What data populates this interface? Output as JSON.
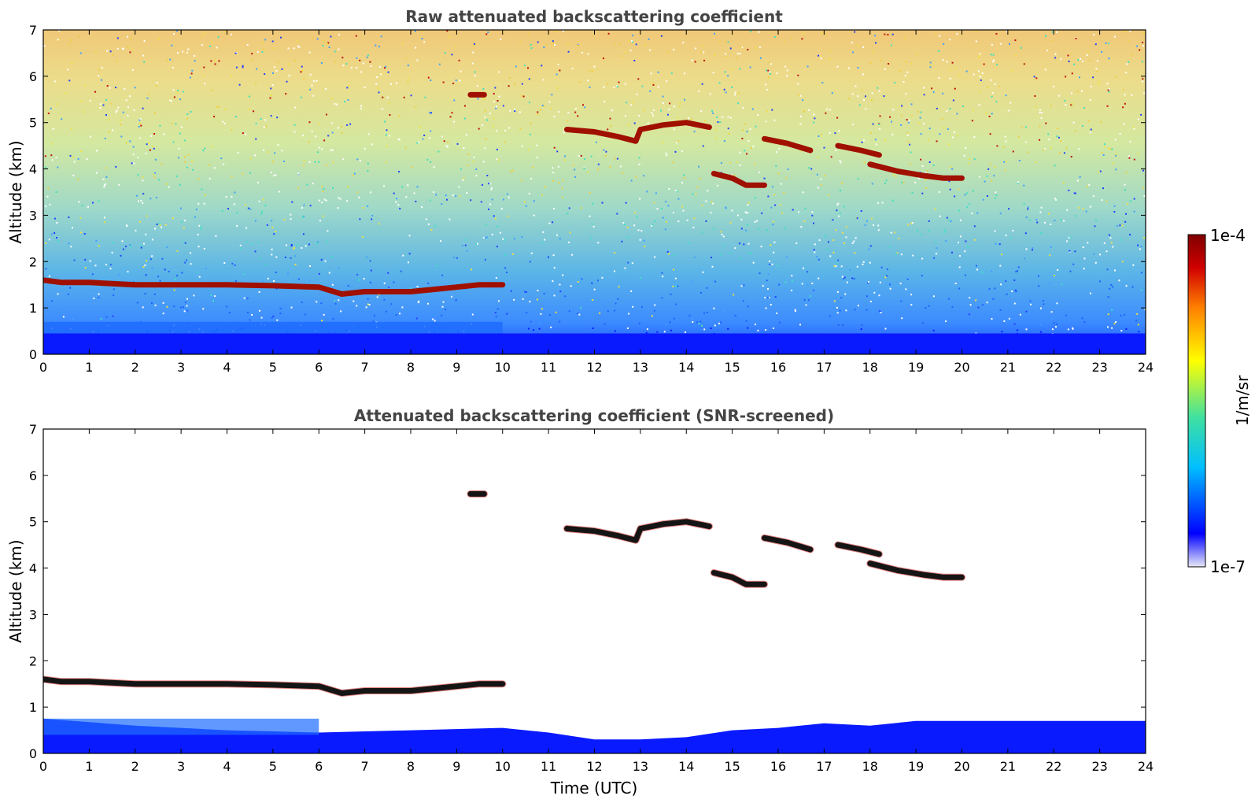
{
  "chart_data": [
    {
      "type": "heatmap",
      "title": "Raw attenuated backscattering coefficient",
      "xlabel": "",
      "ylabel": "Altitude (km)",
      "xlim": [
        0,
        24
      ],
      "ylim": [
        0,
        7
      ],
      "xticks": [
        "0",
        "1",
        "2",
        "3",
        "4",
        "5",
        "6",
        "7",
        "8",
        "9",
        "10",
        "11",
        "12",
        "13",
        "14",
        "15",
        "16",
        "17",
        "18",
        "19",
        "20",
        "21",
        "22",
        "23",
        "24"
      ],
      "yticks": [
        "0",
        "1",
        "2",
        "3",
        "4",
        "5",
        "6",
        "7"
      ],
      "layers": [
        {
          "name": "boundary-layer-top",
          "points": [
            [
              0,
              1.6
            ],
            [
              0.4,
              1.55
            ],
            [
              1,
              1.55
            ],
            [
              2,
              1.5
            ],
            [
              3,
              1.5
            ],
            [
              4,
              1.5
            ],
            [
              5,
              1.48
            ],
            [
              6,
              1.45
            ],
            [
              6.5,
              1.3
            ],
            [
              7,
              1.35
            ],
            [
              8,
              1.35
            ],
            [
              8.5,
              1.4
            ],
            [
              9,
              1.45
            ],
            [
              9.5,
              1.5
            ],
            [
              10,
              1.5
            ]
          ]
        },
        {
          "name": "mid-cloud-a",
          "points": [
            [
              11.4,
              4.85
            ],
            [
              12,
              4.8
            ],
            [
              12.5,
              4.7
            ],
            [
              12.9,
              4.6
            ],
            [
              13,
              4.85
            ],
            [
              13.5,
              4.95
            ],
            [
              14,
              5.0
            ],
            [
              14.5,
              4.9
            ]
          ]
        },
        {
          "name": "mid-cloud-b",
          "points": [
            [
              14.6,
              3.9
            ],
            [
              15,
              3.8
            ],
            [
              15.3,
              3.65
            ],
            [
              15.7,
              3.65
            ]
          ]
        },
        {
          "name": "mid-cloud-c",
          "points": [
            [
              15.7,
              4.65
            ],
            [
              16.2,
              4.55
            ],
            [
              16.7,
              4.4
            ]
          ]
        },
        {
          "name": "mid-cloud-d",
          "points": [
            [
              17.3,
              4.5
            ],
            [
              17.8,
              4.4
            ],
            [
              18.2,
              4.3
            ]
          ]
        },
        {
          "name": "mid-cloud-e",
          "points": [
            [
              18.0,
              4.1
            ],
            [
              18.6,
              3.95
            ],
            [
              19.2,
              3.85
            ],
            [
              19.6,
              3.8
            ],
            [
              20.0,
              3.8
            ]
          ]
        },
        {
          "name": "isolated-echo",
          "points": [
            [
              9.3,
              5.6
            ],
            [
              9.6,
              5.6
            ]
          ]
        }
      ],
      "background": "noisy aerosol/molecular signal, strong near surface"
    },
    {
      "type": "heatmap",
      "title": "Attenuated backscattering coefficient (SNR-screened)",
      "xlabel": "Time (UTC)",
      "ylabel": "Altitude (km)",
      "xlim": [
        0,
        24
      ],
      "ylim": [
        0,
        7
      ],
      "xticks": [
        "0",
        "1",
        "2",
        "3",
        "4",
        "5",
        "6",
        "7",
        "8",
        "9",
        "10",
        "11",
        "12",
        "13",
        "14",
        "15",
        "16",
        "17",
        "18",
        "19",
        "20",
        "21",
        "22",
        "23",
        "24"
      ],
      "yticks": [
        "0",
        "1",
        "2",
        "3",
        "4",
        "5",
        "6",
        "7"
      ],
      "layers": [
        {
          "name": "boundary-layer-top",
          "points": [
            [
              0,
              1.6
            ],
            [
              0.4,
              1.55
            ],
            [
              1,
              1.55
            ],
            [
              2,
              1.5
            ],
            [
              3,
              1.5
            ],
            [
              4,
              1.5
            ],
            [
              5,
              1.48
            ],
            [
              6,
              1.45
            ],
            [
              6.5,
              1.3
            ],
            [
              7,
              1.35
            ],
            [
              8,
              1.35
            ],
            [
              8.5,
              1.4
            ],
            [
              9,
              1.45
            ],
            [
              9.5,
              1.5
            ],
            [
              10,
              1.5
            ]
          ]
        },
        {
          "name": "mid-cloud-a",
          "points": [
            [
              11.4,
              4.85
            ],
            [
              12,
              4.8
            ],
            [
              12.5,
              4.7
            ],
            [
              12.9,
              4.6
            ],
            [
              13,
              4.85
            ],
            [
              13.5,
              4.95
            ],
            [
              14,
              5.0
            ],
            [
              14.5,
              4.9
            ]
          ]
        },
        {
          "name": "mid-cloud-b",
          "points": [
            [
              14.6,
              3.9
            ],
            [
              15,
              3.8
            ],
            [
              15.3,
              3.65
            ],
            [
              15.7,
              3.65
            ]
          ]
        },
        {
          "name": "mid-cloud-c",
          "points": [
            [
              15.7,
              4.65
            ],
            [
              16.2,
              4.55
            ],
            [
              16.7,
              4.4
            ]
          ]
        },
        {
          "name": "mid-cloud-d",
          "points": [
            [
              17.3,
              4.5
            ],
            [
              17.8,
              4.4
            ],
            [
              18.2,
              4.3
            ]
          ]
        },
        {
          "name": "mid-cloud-e",
          "points": [
            [
              18.0,
              4.1
            ],
            [
              18.6,
              3.95
            ],
            [
              19.2,
              3.85
            ],
            [
              19.6,
              3.8
            ],
            [
              20.0,
              3.8
            ]
          ]
        },
        {
          "name": "isolated-echo",
          "points": [
            [
              9.3,
              5.6
            ],
            [
              9.6,
              5.6
            ]
          ]
        }
      ],
      "near_surface_layer_top_km": [
        [
          0,
          0.75
        ],
        [
          2,
          0.6
        ],
        [
          4,
          0.5
        ],
        [
          6,
          0.45
        ],
        [
          8,
          0.5
        ],
        [
          10,
          0.55
        ],
        [
          11,
          0.45
        ],
        [
          12,
          0.3
        ],
        [
          13,
          0.3
        ],
        [
          14,
          0.35
        ],
        [
          15,
          0.5
        ],
        [
          16,
          0.55
        ],
        [
          17,
          0.65
        ],
        [
          18,
          0.6
        ],
        [
          19,
          0.7
        ],
        [
          24,
          0.7
        ]
      ]
    }
  ],
  "colorbar": {
    "max_label": "1e-4",
    "min_label": "1e-7",
    "unit_label": "1/m/sr",
    "scale": "log",
    "colormap": "jet",
    "stops": [
      "#e8e8f8",
      "#0000ff",
      "#00bfff",
      "#40e0a0",
      "#ffff00",
      "#ff8000",
      "#d00000",
      "#7f0000"
    ]
  },
  "colors": {
    "surface": "#0a1aff",
    "surface_mix": "#1e6cff",
    "layer_raw": "#a01000",
    "layer_screened": "#151515",
    "layer_screened_edge": "#d02020"
  }
}
